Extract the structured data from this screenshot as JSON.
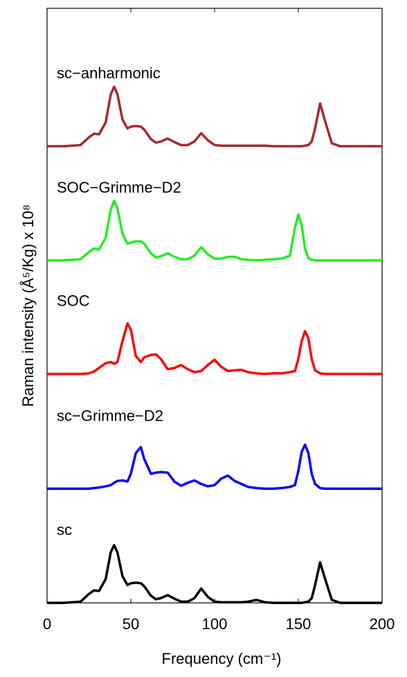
{
  "chart_data": {
    "type": "line",
    "xlabel": "Frequency (cm⁻¹)",
    "ylabel": "Raman intensity (Å⁵/Kg) x 10⁸",
    "xlim": [
      0,
      200
    ],
    "xticks": [
      0,
      50,
      100,
      150,
      200
    ],
    "ylim": [
      0,
      10
    ],
    "x": [
      0,
      10,
      20,
      25,
      28,
      31,
      35,
      38,
      40,
      42,
      45,
      48,
      50,
      53,
      56,
      58,
      62,
      65,
      68,
      72,
      76,
      80,
      84,
      88,
      92,
      96,
      100,
      104,
      108,
      112,
      116,
      120,
      125,
      130,
      135,
      140,
      145,
      148,
      150,
      152,
      154,
      156,
      158,
      160,
      163,
      166,
      170,
      175,
      180,
      190,
      200
    ],
    "series": [
      {
        "name": "sc",
        "color": "#000000",
        "values": [
          0,
          0,
          0.02,
          0.15,
          0.21,
          0.2,
          0.4,
          0.85,
          0.97,
          0.85,
          0.45,
          0.3,
          0.33,
          0.34,
          0.33,
          0.28,
          0.12,
          0.06,
          0.08,
          0.13,
          0.07,
          0.02,
          0.02,
          0.08,
          0.24,
          0.1,
          0.02,
          0.01,
          0.01,
          0.01,
          0.01,
          0.02,
          0.05,
          0.01,
          0,
          0,
          0,
          0,
          0,
          0,
          0.01,
          0.02,
          0.08,
          0.3,
          0.68,
          0.4,
          0.05,
          0,
          0,
          0,
          0
        ]
      },
      {
        "name": "sc−Grimme−D2",
        "color": "#0000ff",
        "values": [
          1.92,
          1.92,
          1.92,
          1.92,
          1.93,
          1.94,
          1.96,
          1.98,
          2.02,
          2.05,
          2.06,
          2.04,
          2.17,
          2.52,
          2.62,
          2.42,
          2.17,
          2.19,
          2.2,
          2.19,
          2.04,
          1.97,
          2.02,
          2.06,
          2,
          1.96,
          1.98,
          2.09,
          2.14,
          2.05,
          2,
          1.95,
          1.93,
          1.92,
          1.92,
          1.93,
          1.95,
          1.98,
          2.22,
          2.54,
          2.66,
          2.52,
          2.17,
          2,
          1.93,
          1.92,
          1.92,
          1.92,
          1.92,
          1.92,
          1.92
        ]
      },
      {
        "name": "SOC",
        "color": "#ff0000",
        "values": [
          3.85,
          3.85,
          3.85,
          3.86,
          3.89,
          3.95,
          4.03,
          4.05,
          4.02,
          4.05,
          4.4,
          4.7,
          4.6,
          4.15,
          4.05,
          4.13,
          4.17,
          4.18,
          4.1,
          3.93,
          3.95,
          4,
          3.93,
          3.88,
          3.9,
          4,
          4.09,
          3.97,
          3.9,
          3.91,
          3.92,
          3.88,
          3.86,
          3.85,
          3.86,
          3.86,
          3.88,
          3.9,
          4.1,
          4.4,
          4.57,
          4.45,
          4.1,
          3.91,
          3.86,
          3.85,
          3.85,
          3.85,
          3.85,
          3.85,
          3.85
        ]
      },
      {
        "name": "SOC−Grimme−D2",
        "color": "#22ee22",
        "values": [
          5.76,
          5.76,
          5.78,
          5.9,
          5.96,
          5.94,
          6.14,
          6.61,
          6.76,
          6.64,
          6.21,
          6.04,
          6.06,
          6.08,
          6.08,
          6.04,
          5.88,
          5.81,
          5.83,
          5.88,
          5.82,
          5.78,
          5.78,
          5.84,
          5.98,
          5.86,
          5.79,
          5.79,
          5.82,
          5.82,
          5.78,
          5.77,
          5.76,
          5.77,
          5.78,
          5.79,
          5.84,
          6.31,
          6.53,
          6.36,
          5.96,
          5.8,
          5.77,
          5.76,
          5.76,
          5.76,
          5.76,
          5.76,
          5.76,
          5.76,
          5.76
        ]
      },
      {
        "name": "sc−anharmonic",
        "color": "#a52a2a",
        "values": [
          7.68,
          7.68,
          7.7,
          7.83,
          7.89,
          7.88,
          8.08,
          8.55,
          8.68,
          8.56,
          8.13,
          7.98,
          8.01,
          8.02,
          8.01,
          7.96,
          7.8,
          7.74,
          7.76,
          7.81,
          7.75,
          7.7,
          7.7,
          7.76,
          7.9,
          7.78,
          7.7,
          7.69,
          7.69,
          7.69,
          7.69,
          7.69,
          7.69,
          7.69,
          7.68,
          7.68,
          7.68,
          7.68,
          7.68,
          7.68,
          7.69,
          7.7,
          7.76,
          7.98,
          8.4,
          8.1,
          7.73,
          7.68,
          7.68,
          7.68,
          7.68
        ]
      }
    ]
  }
}
